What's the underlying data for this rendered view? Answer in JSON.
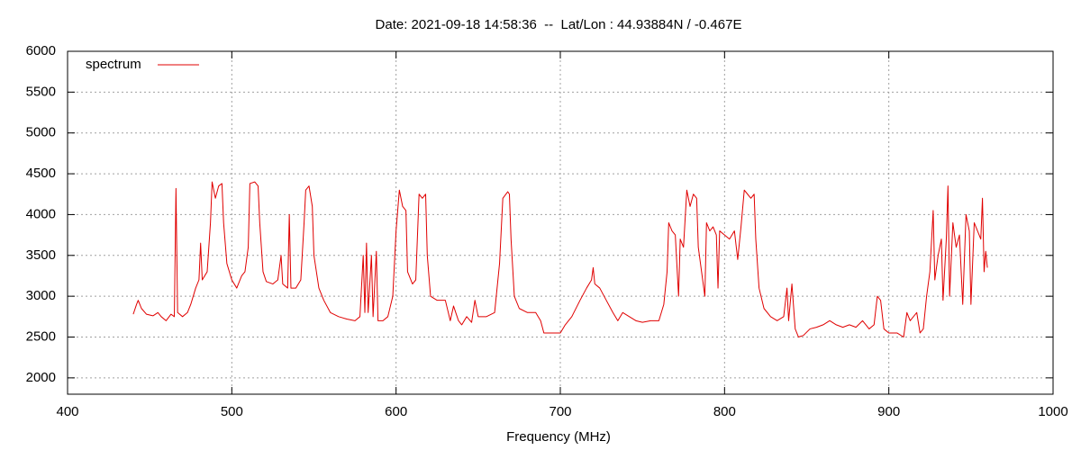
{
  "chart_data": {
    "type": "line",
    "title": "Date: 2021-09-18 14:58:36  --  Lat/Lon : 44.93884N / -0.467E",
    "x_label": "Frequency (MHz)",
    "xlim": [
      400,
      1000
    ],
    "xticks": [
      400,
      500,
      600,
      700,
      800,
      900,
      1000
    ],
    "ylim": [
      1800,
      6000
    ],
    "yticks": [
      2000,
      2500,
      3000,
      3500,
      4000,
      4500,
      5000,
      5500,
      6000
    ],
    "grid": true,
    "legend": "top-left",
    "x": [
      440,
      442,
      443,
      445,
      448,
      452,
      455,
      457,
      460,
      463,
      465,
      466,
      467,
      470,
      473,
      475,
      478,
      480,
      481,
      482,
      485,
      487,
      488,
      490,
      492,
      494,
      495,
      497,
      500,
      503,
      506,
      508,
      510,
      511,
      514,
      516,
      517,
      519,
      521,
      525,
      528,
      530,
      531,
      534,
      535,
      536,
      539,
      542,
      544,
      545,
      547,
      549,
      550,
      553,
      556,
      560,
      565,
      570,
      575,
      578,
      580,
      581,
      582,
      583,
      585,
      586,
      588,
      589,
      592,
      595,
      598,
      600,
      602,
      604,
      606,
      607,
      610,
      612,
      614,
      616,
      618,
      619,
      621,
      625,
      630,
      633,
      635,
      638,
      640,
      643,
      646,
      648,
      650,
      655,
      660,
      663,
      665,
      668,
      669,
      670,
      672,
      675,
      680,
      685,
      688,
      690,
      695,
      700,
      703,
      707,
      712,
      716,
      719,
      720,
      721,
      724,
      728,
      732,
      735,
      738,
      742,
      746,
      750,
      755,
      760,
      763,
      765,
      766,
      768,
      770,
      772,
      773,
      775,
      777,
      779,
      781,
      783,
      784,
      786,
      788,
      789,
      791,
      793,
      795,
      796,
      797,
      800,
      803,
      806,
      808,
      810,
      812,
      814,
      816,
      818,
      819,
      821,
      824,
      828,
      832,
      836,
      838,
      839,
      841,
      843,
      845,
      848,
      852,
      856,
      860,
      864,
      868,
      872,
      876,
      880,
      884,
      888,
      891,
      893,
      895,
      897,
      900,
      905,
      909,
      911,
      913,
      917,
      919,
      921,
      923,
      925,
      927,
      928,
      930,
      932,
      933,
      935,
      936,
      937,
      939,
      941,
      943,
      945,
      947,
      949,
      950,
      952,
      954,
      956,
      957,
      958,
      959,
      960
    ],
    "series": [
      {
        "name": "spectrum",
        "color": "#e00000",
        "values": [
          2780,
          2900,
          2950,
          2850,
          2780,
          2760,
          2800,
          2750,
          2700,
          2780,
          2750,
          4320,
          2800,
          2750,
          2800,
          2900,
          3100,
          3200,
          3650,
          3200,
          3300,
          3900,
          4400,
          4200,
          4350,
          4380,
          3900,
          3400,
          3200,
          3100,
          3250,
          3300,
          3600,
          4380,
          4400,
          4350,
          3900,
          3300,
          3180,
          3150,
          3200,
          3500,
          3150,
          3100,
          4000,
          3100,
          3100,
          3200,
          3900,
          4300,
          4350,
          4100,
          3500,
          3100,
          2950,
          2800,
          2750,
          2720,
          2700,
          2750,
          3500,
          2800,
          3650,
          2800,
          3500,
          2750,
          3550,
          2700,
          2700,
          2750,
          3000,
          3800,
          4300,
          4100,
          4050,
          3300,
          3150,
          3200,
          4250,
          4200,
          4250,
          3500,
          3000,
          2950,
          2950,
          2700,
          2880,
          2700,
          2650,
          2750,
          2680,
          2950,
          2750,
          2750,
          2800,
          3400,
          4200,
          4280,
          4250,
          3700,
          3000,
          2850,
          2800,
          2800,
          2700,
          2550,
          2550,
          2550,
          2650,
          2750,
          2950,
          3100,
          3200,
          3350,
          3150,
          3100,
          2950,
          2800,
          2700,
          2800,
          2750,
          2700,
          2680,
          2700,
          2700,
          2900,
          3300,
          3900,
          3800,
          3750,
          3000,
          3700,
          3600,
          4300,
          4100,
          4250,
          4200,
          3600,
          3300,
          3000,
          3900,
          3800,
          3850,
          3750,
          3100,
          3800,
          3750,
          3700,
          3800,
          3450,
          3850,
          4300,
          4250,
          4200,
          4250,
          3700,
          3100,
          2850,
          2750,
          2700,
          2750,
          3100,
          2700,
          3150,
          2600,
          2500,
          2520,
          2600,
          2620,
          2650,
          2700,
          2650,
          2620,
          2650,
          2620,
          2700,
          2600,
          2650,
          3000,
          2950,
          2600,
          2550,
          2550,
          2500,
          2800,
          2700,
          2800,
          2550,
          2600,
          3000,
          3300,
          4050,
          3200,
          3500,
          3700,
          2950,
          3700,
          4350,
          3000,
          3900,
          3600,
          3750,
          2900,
          4000,
          3800,
          2900,
          3900,
          3800,
          3700,
          4200,
          3300,
          3550,
          3350
        ]
      }
    ]
  }
}
